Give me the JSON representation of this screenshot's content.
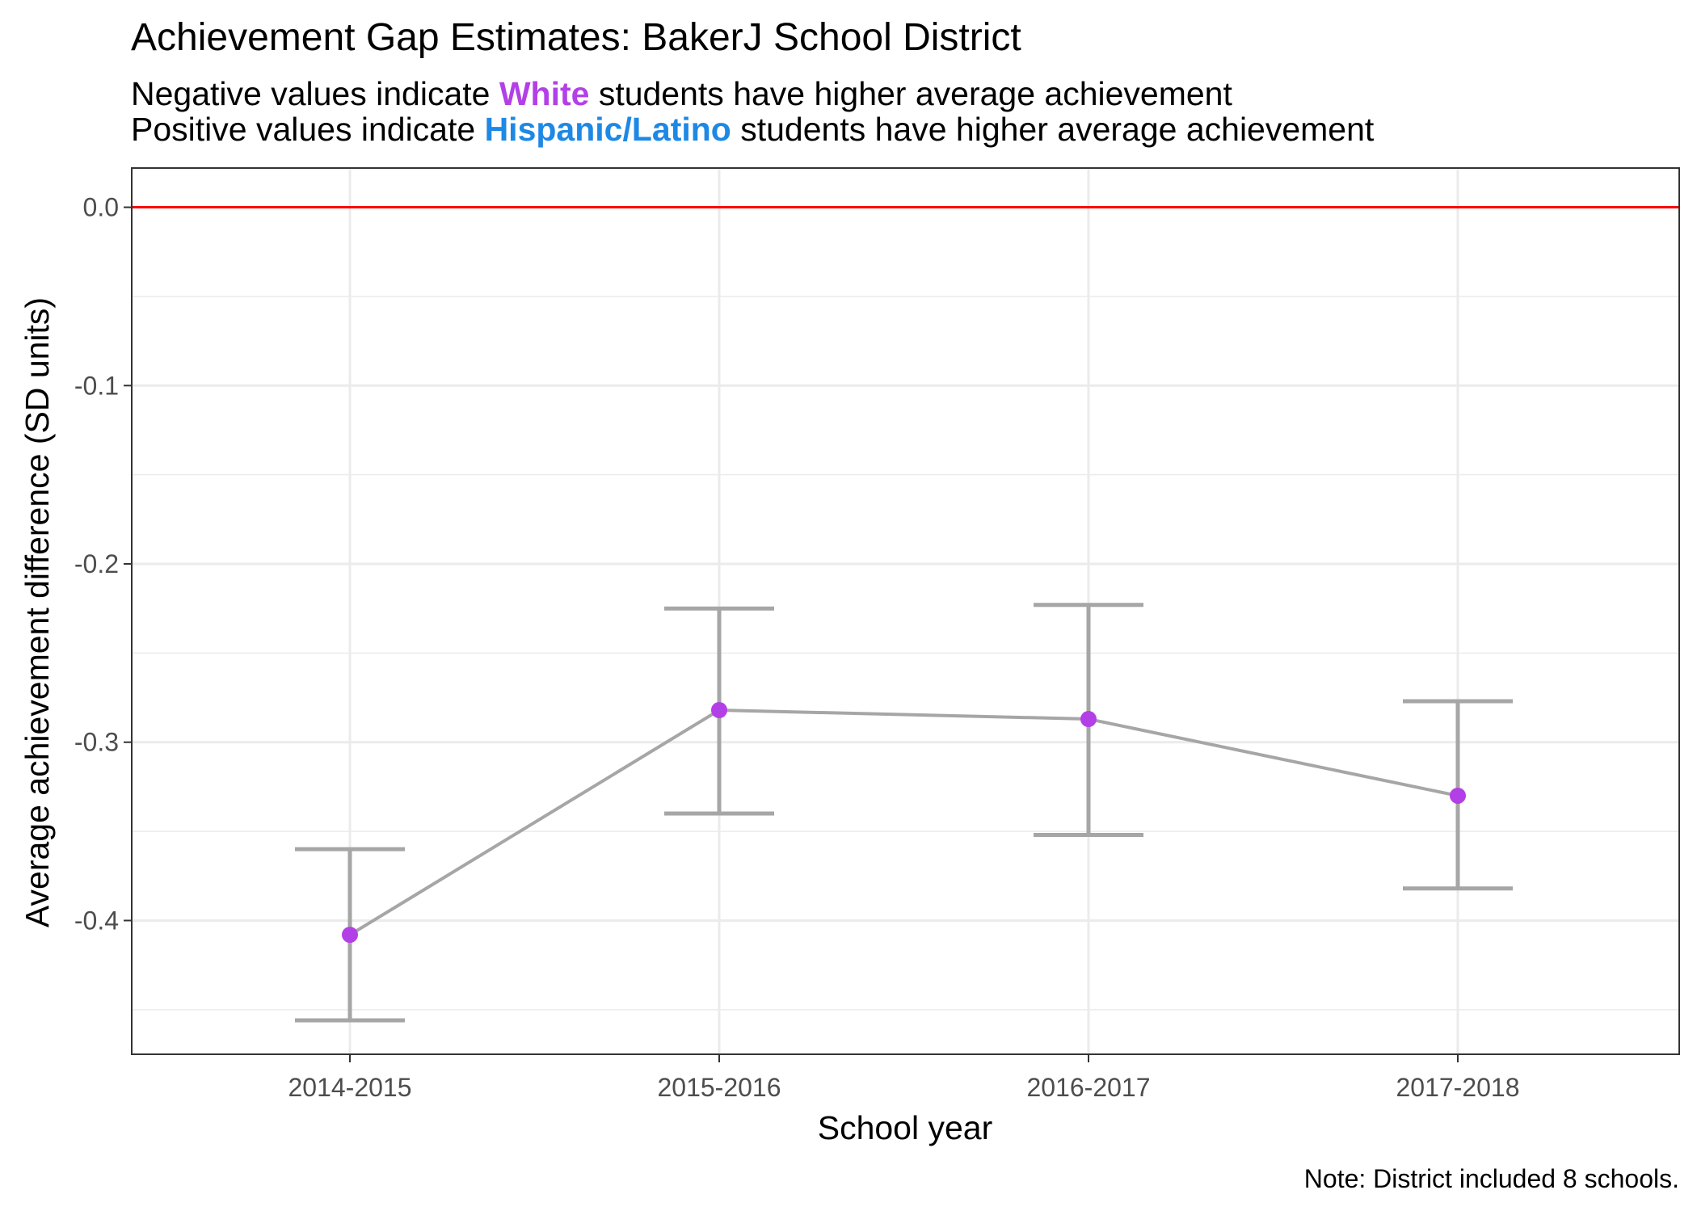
{
  "chart_data": {
    "type": "line",
    "title": "Achievement Gap Estimates: BakerJ School District",
    "subtitle": {
      "line1": {
        "pre": "Negative values indicate ",
        "highlight": "White",
        "post": " students have higher average achievement",
        "highlight_color": "#b340e6"
      },
      "line2": {
        "pre": "Positive values indicate ",
        "highlight": "Hispanic/Latino",
        "post": " students have higher average achievement",
        "highlight_color": "#1e88e5"
      }
    },
    "xlabel": "School year",
    "ylabel": "Average achievement difference (SD units)",
    "categories": [
      "2014-2015",
      "2015-2016",
      "2016-2017",
      "2017-2018"
    ],
    "series": [
      {
        "values": [
          -0.408,
          -0.282,
          -0.287,
          -0.33
        ],
        "lower": [
          -0.456,
          -0.34,
          -0.352,
          -0.382
        ],
        "upper": [
          -0.36,
          -0.225,
          -0.223,
          -0.277
        ]
      }
    ],
    "ylim": [
      -0.475,
      0.022
    ],
    "yticks": [
      0.0,
      -0.1,
      -0.2,
      -0.3,
      -0.4
    ],
    "ytick_labels": [
      "0.0",
      "-0.1",
      "-0.2",
      "-0.3",
      "-0.4"
    ],
    "reference_line": {
      "y": 0,
      "color": "#ff0000"
    },
    "colors": {
      "point": "#b340e6",
      "line": "#a6a6a6",
      "errorbar": "#a6a6a6",
      "grid": "#ebebeb"
    },
    "grid": true,
    "caption": "Note: District included 8 schools."
  }
}
